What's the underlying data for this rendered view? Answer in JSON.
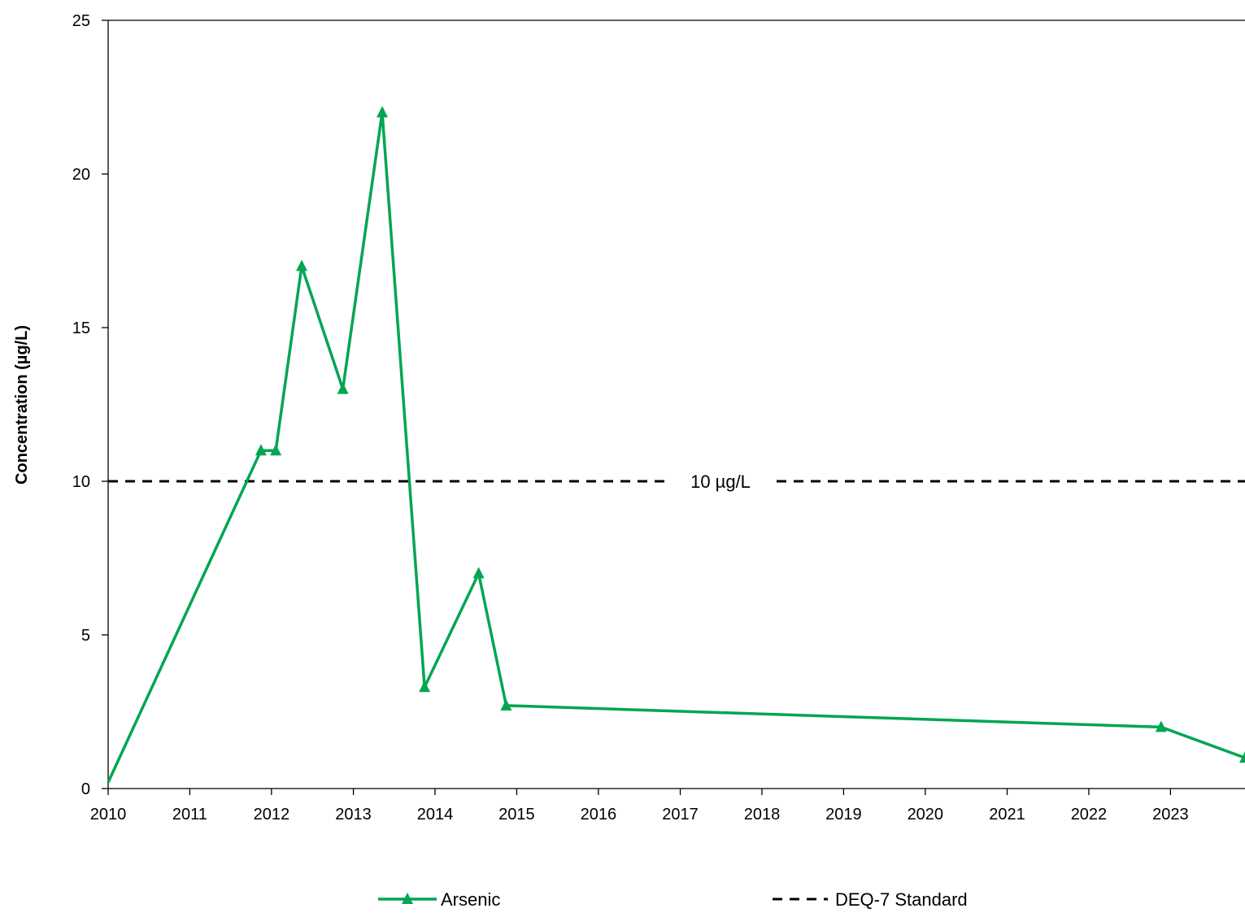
{
  "chart_data": {
    "type": "line",
    "title": "",
    "xlabel": "",
    "ylabel": "Concentration (µg/L)",
    "xlim": [
      "2010-01-01",
      "2023-11-30"
    ],
    "ylim": [
      0,
      25
    ],
    "x_ticks": [
      "2010",
      "2011",
      "2012",
      "2013",
      "2014",
      "2015",
      "2016",
      "2017",
      "2018",
      "2019",
      "2020",
      "2021",
      "2022",
      "2023"
    ],
    "y_ticks": [
      "0",
      "5",
      "10",
      "15",
      "20",
      "25"
    ],
    "grid": false,
    "legend_position": "bottom",
    "series": [
      {
        "name": "Arsenic",
        "color": "#00a651",
        "marker": "triangle",
        "points": [
          {
            "x": "2010-01-01",
            "y": 0.2
          },
          {
            "x": "2011-11-15",
            "y": 11
          },
          {
            "x": "2012-01-20",
            "y": 11
          },
          {
            "x": "2012-05-15",
            "y": 17
          },
          {
            "x": "2012-11-15",
            "y": 13
          },
          {
            "x": "2013-05-10",
            "y": 22
          },
          {
            "x": "2013-11-15",
            "y": 3.3
          },
          {
            "x": "2014-07-15",
            "y": 7
          },
          {
            "x": "2014-11-15",
            "y": 2.7
          },
          {
            "x": "2022-11-20",
            "y": 2
          },
          {
            "x": "2023-11-30",
            "y": 1
          }
        ]
      },
      {
        "name": "DEQ-7 Standard",
        "color": "#000000",
        "style": "dashed",
        "value": 10,
        "label": "10 µg/L"
      }
    ]
  }
}
